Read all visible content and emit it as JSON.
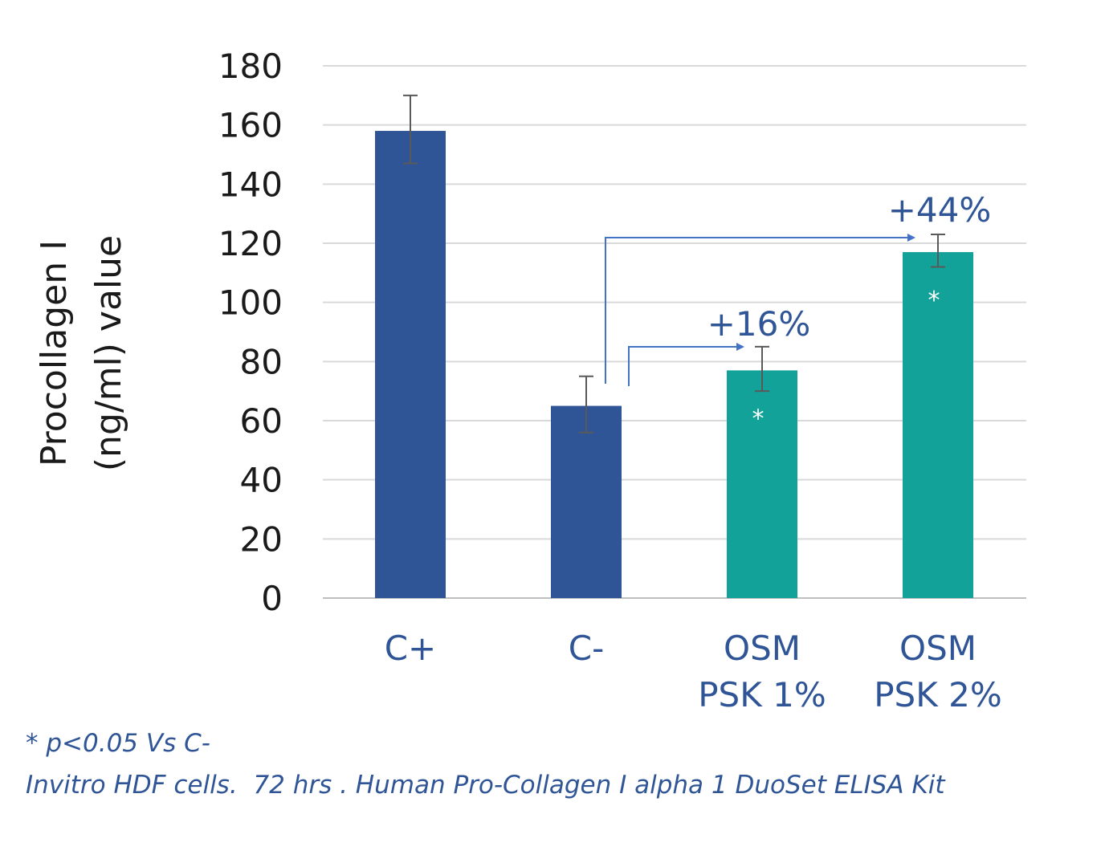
{
  "chart_data": {
    "type": "bar",
    "ylabel_line1": "Procollagen I",
    "ylabel_line2": "(ng/ml) value",
    "ylim": [
      0,
      180
    ],
    "yticks": [
      0,
      20,
      40,
      60,
      80,
      100,
      120,
      140,
      160,
      180
    ],
    "grid": true,
    "categories": [
      [
        "C+"
      ],
      [
        "C-"
      ],
      [
        "OSM",
        "PSK 1%"
      ],
      [
        "OSM",
        "PSK 2%"
      ]
    ],
    "values": [
      158,
      65,
      77,
      117
    ],
    "error_high": [
      170,
      75,
      85,
      123
    ],
    "error_low": [
      147,
      56,
      70,
      112
    ],
    "bar_colors": [
      "#2f5597",
      "#2f5597",
      "#13a29a",
      "#13a29a"
    ],
    "significance_marks": [
      "",
      "",
      "*",
      "*"
    ],
    "annotations": [
      {
        "text": "+16%",
        "from_category": 1,
        "to_category": 2
      },
      {
        "text": "+44%",
        "from_category": 1,
        "to_category": 3
      }
    ]
  },
  "footnotes": {
    "line1": "* p<0.05 Vs C-",
    "line2": "Invitro HDF cells.  72 hrs . Human Pro-Collagen I alpha 1 DuoSet ELISA Kit"
  },
  "colors": {
    "text_dark": "#1a1a1a",
    "category_text": "#2f5597",
    "grid": "#d9d9d9",
    "axis": "#bfbfbf",
    "error_bar": "#595959",
    "arrow": "#4472c4",
    "annotation_text": "#2f5597"
  }
}
